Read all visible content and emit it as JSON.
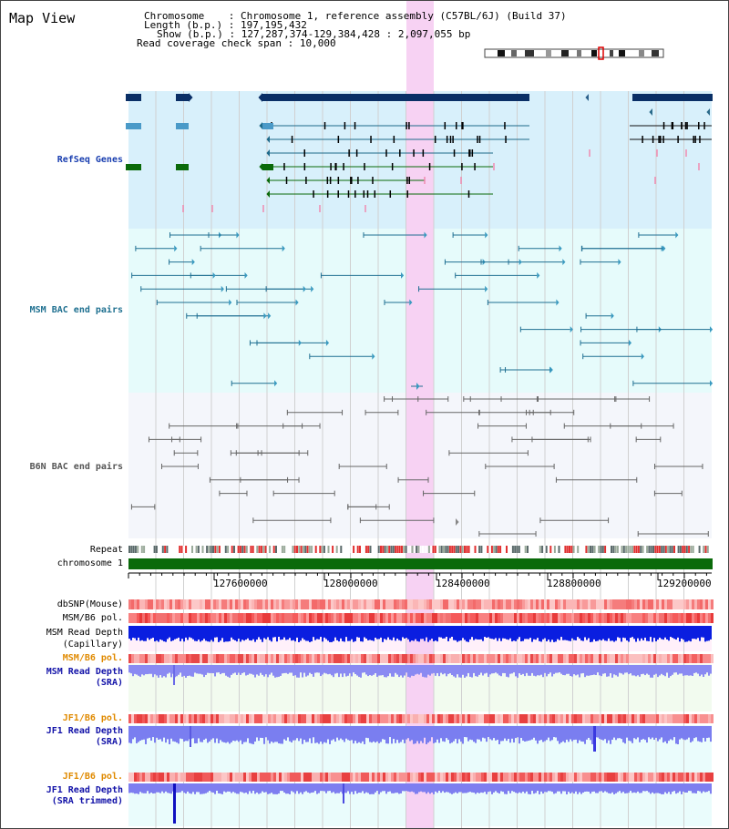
{
  "page_title": "Map View",
  "header": {
    "chromosome_key": "Chromosome",
    "chromosome_value": "Chromosome 1, reference assembly (C57BL/6J) (Build 37)",
    "length_key": "Length (b.p.)",
    "length_value": "197,195,432",
    "show_key": "Show (b.p.)",
    "show_value": "127,287,374-129,384,428 : 2,097,055 bp",
    "coverage_key": "Read coverage check span",
    "coverage_value": "10,000"
  },
  "tracks": {
    "refseq": "RefSeq Genes",
    "msm_bac": "MSM BAC end pairs",
    "b6n_bac": "B6N BAC end pairs",
    "repeat": "Repeat",
    "chromosome": "chromosome 1",
    "dbsnp": "dbSNP(Mouse)",
    "msm_b6_pol_1": "MSM/B6 pol.",
    "msm_depth_cap_1": "MSM Read Depth",
    "msm_depth_cap_2": "(Capillary)",
    "msm_b6_pol_2": "MSM/B6 pol.",
    "msm_depth_sra_1": "MSM Read Depth",
    "msm_depth_sra_2": "(SRA)",
    "jf1_b6_pol_1": "JF1/B6 pol.",
    "jf1_depth_sra_1": "JF1 Read Depth",
    "jf1_depth_sra_2": "(SRA)",
    "jf1_b6_pol_2": "JF1/B6 pol.",
    "jf1_depth_trim_1": "JF1 Read Depth",
    "jf1_depth_trim_2": "(SRA trimmed)"
  },
  "axis": {
    "ticks": [
      "127600000",
      "128000000",
      "128400000",
      "128800000",
      "129200000"
    ]
  },
  "colors": {
    "refseq_bg": "#d8f0fb",
    "msm_bg": "#e6fbfb",
    "b6n_bg": "#f4f6fb",
    "highlight": "#f7d2f3",
    "gene_navy": "#0a2f66",
    "gene_green": "#0a6a0a",
    "depth_blue": "#0a1ee0",
    "depth_light": "#7e7ef0"
  }
}
